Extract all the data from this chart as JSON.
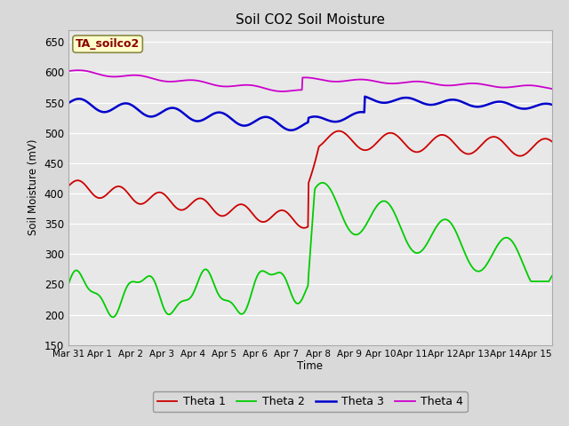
{
  "title": "Soil CO2 Soil Moisture",
  "ylabel": "Soil Moisture (mV)",
  "xlabel": "Time",
  "annotation": "TA_soilco2",
  "ylim": [
    150,
    670
  ],
  "yticks": [
    150,
    200,
    250,
    300,
    350,
    400,
    450,
    500,
    550,
    600,
    650
  ],
  "x_labels": [
    "Mar 31",
    "Apr 1",
    "Apr 2",
    "Apr 3",
    "Apr 4",
    "Apr 5",
    "Apr 6",
    "Apr 7",
    "Apr 8",
    "Apr 9",
    "Apr 10",
    "Apr 11",
    "Apr 12",
    "Apr 13",
    "Apr 14",
    "Apr 15"
  ],
  "colors": {
    "theta1": "#cc0000",
    "theta2": "#00cc00",
    "theta3": "#0000cc",
    "theta4": "#cc00cc"
  },
  "background_color": "#d9d9d9",
  "plot_bg_color": "#e8e8e8",
  "legend_labels": [
    "Theta 1",
    "Theta 2",
    "Theta 3",
    "Theta 4"
  ],
  "n_days": 15.5,
  "n_points": 800
}
